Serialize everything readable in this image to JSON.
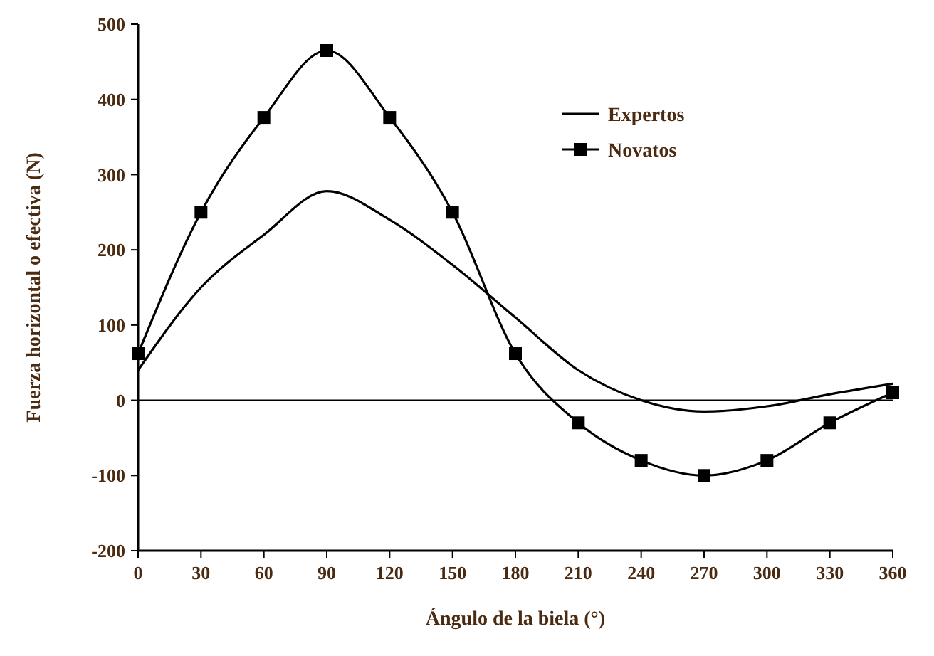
{
  "chart_data": {
    "type": "line",
    "xlabel": "Ángulo de la biela (°)",
    "ylabel": "Fuerza horizontal o efectiva (N)",
    "x": [
      0,
      30,
      60,
      90,
      120,
      150,
      180,
      210,
      240,
      270,
      300,
      330,
      360
    ],
    "xlim": [
      0,
      360
    ],
    "xticks": [
      0,
      30,
      60,
      90,
      120,
      150,
      180,
      210,
      240,
      270,
      300,
      330,
      360
    ],
    "ylim": [
      -200,
      500
    ],
    "yticks": [
      -200,
      -100,
      0,
      100,
      200,
      300,
      400,
      500
    ],
    "series": [
      {
        "name": "Expertos",
        "color": "#000000",
        "marker": "none",
        "values": [
          40,
          150,
          220,
          278,
          240,
          180,
          110,
          40,
          0,
          -15,
          -8,
          8,
          22
        ]
      },
      {
        "name": "Novatos",
        "color": "#000000",
        "marker": "square",
        "values": [
          62,
          250,
          376,
          465,
          376,
          250,
          62,
          -30,
          -80,
          -100,
          -80,
          -30,
          10
        ]
      }
    ],
    "ref_lines": [
      {
        "axis": "y",
        "value": 0,
        "color": "#000000"
      }
    ],
    "legend": "top right",
    "grid": false,
    "line_style": "solid"
  }
}
